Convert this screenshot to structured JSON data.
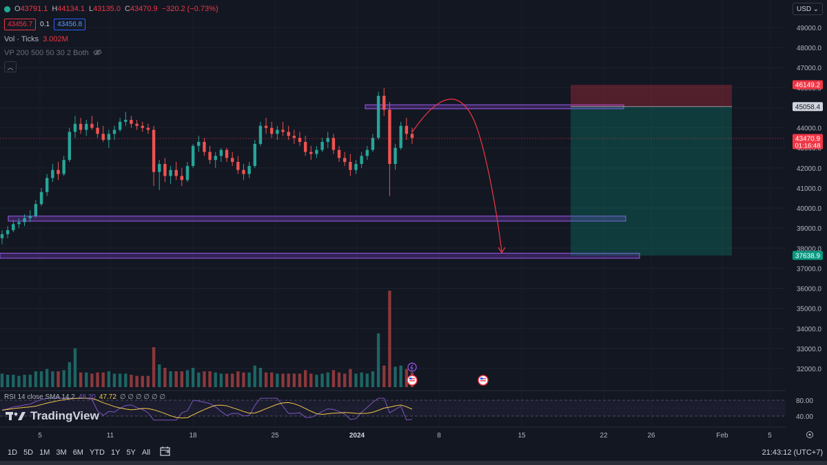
{
  "legend": {
    "open_label": "O",
    "open": "43791.1",
    "high_label": "H",
    "high": "44134.1",
    "low_label": "L",
    "low": "43135.0",
    "close_label": "C",
    "close": "43470.9",
    "change": "−320.2 (−0.73%)",
    "bid": "43456.7",
    "spread": "0.1",
    "ask": "43456.8",
    "vol_label": "Vol · Ticks",
    "vol_value": "3.002M",
    "vp_label": "VP 200 500 50 30 2 Both"
  },
  "currency": "USD",
  "rsi_legend": {
    "label": "RSI 14 close SMA 14 2",
    "value": "48.20",
    "sma_value": "47.72",
    "extras": "∅ ∅ ∅ ∅ ∅ ∅"
  },
  "brand": "TradingView",
  "time_ranges": [
    "1D",
    "5D",
    "1M",
    "3M",
    "6M",
    "YTD",
    "1Y",
    "5Y",
    "All"
  ],
  "clock": "21:43:12 (UTC+7)",
  "colors": {
    "background": "#131722",
    "up": "#26a69a",
    "down": "#ef5350",
    "zone": "#7b3fbf",
    "stop": "#f23645",
    "target": "#089981",
    "rsi": "#7e57c2",
    "rsi_sma": "#f7c948"
  },
  "chart_data": {
    "type": "candlestick",
    "symbol_price_axis": {
      "ticks": [
        49000,
        48000,
        47000,
        46000,
        45000,
        44000,
        43000,
        42000,
        41000,
        40000,
        39000,
        38000,
        37000,
        36000,
        35000,
        34000,
        33000,
        32000
      ],
      "tick_labels": [
        "49000.0",
        "48000.0",
        "47000.0",
        "46000.0",
        "45000.0",
        "44000.0",
        "43000.0",
        "42000.0",
        "41000.0",
        "40000.0",
        "39000.0",
        "38000.0",
        "37000.0",
        "36000.0",
        "35000.0",
        "34000.0",
        "33000.0",
        "32000.0"
      ]
    },
    "time_axis": {
      "labels": [
        "5",
        "11",
        "18",
        "25",
        "2024",
        "8",
        "15",
        "22",
        "26",
        "Feb",
        "5"
      ]
    },
    "price_tags": [
      {
        "price": 46149.2,
        "label": "46149.2",
        "kind": "stop"
      },
      {
        "price": 45058.4,
        "label": "45058.4",
        "kind": "entry"
      },
      {
        "price": 43470.9,
        "label": "43470.9",
        "kind": "last",
        "countdown": "01:16:48"
      },
      {
        "price": 37638.9,
        "label": "37638.9",
        "kind": "target"
      }
    ],
    "zones": [
      {
        "low": 44950,
        "high": 45150,
        "label": ""
      },
      {
        "low": 39350,
        "high": 39600,
        "label": ""
      },
      {
        "low": 37500,
        "high": 37750,
        "label": ""
      }
    ],
    "position": {
      "type": "short",
      "entry": 45058.4,
      "stop": 46149.2,
      "target": 37638.9
    },
    "candles_ohlc": [
      [
        38500,
        38900,
        38200,
        38700
      ],
      [
        38700,
        39100,
        38500,
        38900
      ],
      [
        38900,
        39400,
        38800,
        39200
      ],
      [
        39200,
        39500,
        39000,
        39300
      ],
      [
        39300,
        39700,
        39100,
        39500
      ],
      [
        39500,
        39900,
        39300,
        39600
      ],
      [
        39600,
        40400,
        39500,
        40200
      ],
      [
        40200,
        41000,
        40100,
        40800
      ],
      [
        40800,
        41700,
        40600,
        41500
      ],
      [
        41500,
        42200,
        41300,
        41900
      ],
      [
        41900,
        42300,
        41400,
        41700
      ],
      [
        41700,
        42600,
        41600,
        42400
      ],
      [
        42400,
        44000,
        42300,
        43800
      ],
      [
        43800,
        44600,
        43500,
        44200
      ],
      [
        44200,
        44500,
        43700,
        43900
      ],
      [
        43900,
        44400,
        43600,
        44200
      ],
      [
        44200,
        44600,
        43900,
        44000
      ],
      [
        44000,
        44300,
        43500,
        43700
      ],
      [
        43700,
        44100,
        43300,
        43400
      ],
      [
        43400,
        43900,
        43000,
        43700
      ],
      [
        43700,
        44100,
        43400,
        43900
      ],
      [
        43900,
        44500,
        43800,
        44300
      ],
      [
        44300,
        44800,
        44100,
        44400
      ],
      [
        44400,
        44600,
        44000,
        44200
      ],
      [
        44200,
        44400,
        43900,
        44100
      ],
      [
        44100,
        44300,
        43800,
        44000
      ],
      [
        44000,
        44200,
        43700,
        43900
      ],
      [
        43900,
        44100,
        41100,
        41800
      ],
      [
        41800,
        42400,
        40900,
        42200
      ],
      [
        42200,
        42500,
        41300,
        41600
      ],
      [
        41600,
        42100,
        41200,
        41900
      ],
      [
        41900,
        42300,
        41400,
        41600
      ],
      [
        41600,
        42000,
        41100,
        41400
      ],
      [
        41400,
        42300,
        41300,
        42100
      ],
      [
        42100,
        43200,
        42000,
        43100
      ],
      [
        43100,
        43600,
        42800,
        43300
      ],
      [
        43300,
        43500,
        42600,
        42800
      ],
      [
        42800,
        43100,
        42200,
        42400
      ],
      [
        42400,
        42800,
        42000,
        42600
      ],
      [
        42600,
        43000,
        42300,
        42900
      ],
      [
        42900,
        43000,
        42300,
        42500
      ],
      [
        42500,
        42800,
        42100,
        42300
      ],
      [
        42300,
        42600,
        41700,
        41900
      ],
      [
        41900,
        42200,
        41400,
        41700
      ],
      [
        41700,
        42300,
        41500,
        42100
      ],
      [
        42100,
        43400,
        42000,
        43200
      ],
      [
        43200,
        44300,
        43100,
        44100
      ],
      [
        44100,
        44500,
        43700,
        44000
      ],
      [
        44000,
        44300,
        43500,
        43700
      ],
      [
        43700,
        44100,
        43400,
        43900
      ],
      [
        43900,
        44300,
        43600,
        43800
      ],
      [
        43800,
        44100,
        43400,
        43600
      ],
      [
        43600,
        43900,
        43200,
        43500
      ],
      [
        43500,
        43800,
        43100,
        43300
      ],
      [
        43300,
        43600,
        42600,
        42800
      ],
      [
        42800,
        43100,
        42400,
        42700
      ],
      [
        42700,
        43100,
        42500,
        42900
      ],
      [
        42900,
        43500,
        42800,
        43300
      ],
      [
        43300,
        43800,
        43000,
        43500
      ],
      [
        43500,
        43700,
        42700,
        42900
      ],
      [
        42900,
        43100,
        42300,
        42500
      ],
      [
        42500,
        42800,
        42100,
        42300
      ],
      [
        42300,
        42700,
        41600,
        41900
      ],
      [
        41900,
        42400,
        41700,
        42200
      ],
      [
        42200,
        42800,
        42000,
        42600
      ],
      [
        42600,
        43100,
        42400,
        42900
      ],
      [
        42900,
        43700,
        42800,
        43500
      ],
      [
        43500,
        45800,
        43400,
        45600
      ],
      [
        45600,
        46000,
        44600,
        44900
      ],
      [
        44900,
        45300,
        40600,
        42200
      ],
      [
        42200,
        43200,
        41900,
        43000
      ],
      [
        43000,
        44300,
        42900,
        44100
      ],
      [
        44100,
        44500,
        43400,
        43700
      ],
      [
        43700,
        44000,
        43200,
        43500
      ]
    ],
    "volume_scale_note": "relative",
    "rsi": {
      "lines": [
        80.0,
        40.0
      ],
      "value": 48.2,
      "sma": 47.72
    }
  }
}
